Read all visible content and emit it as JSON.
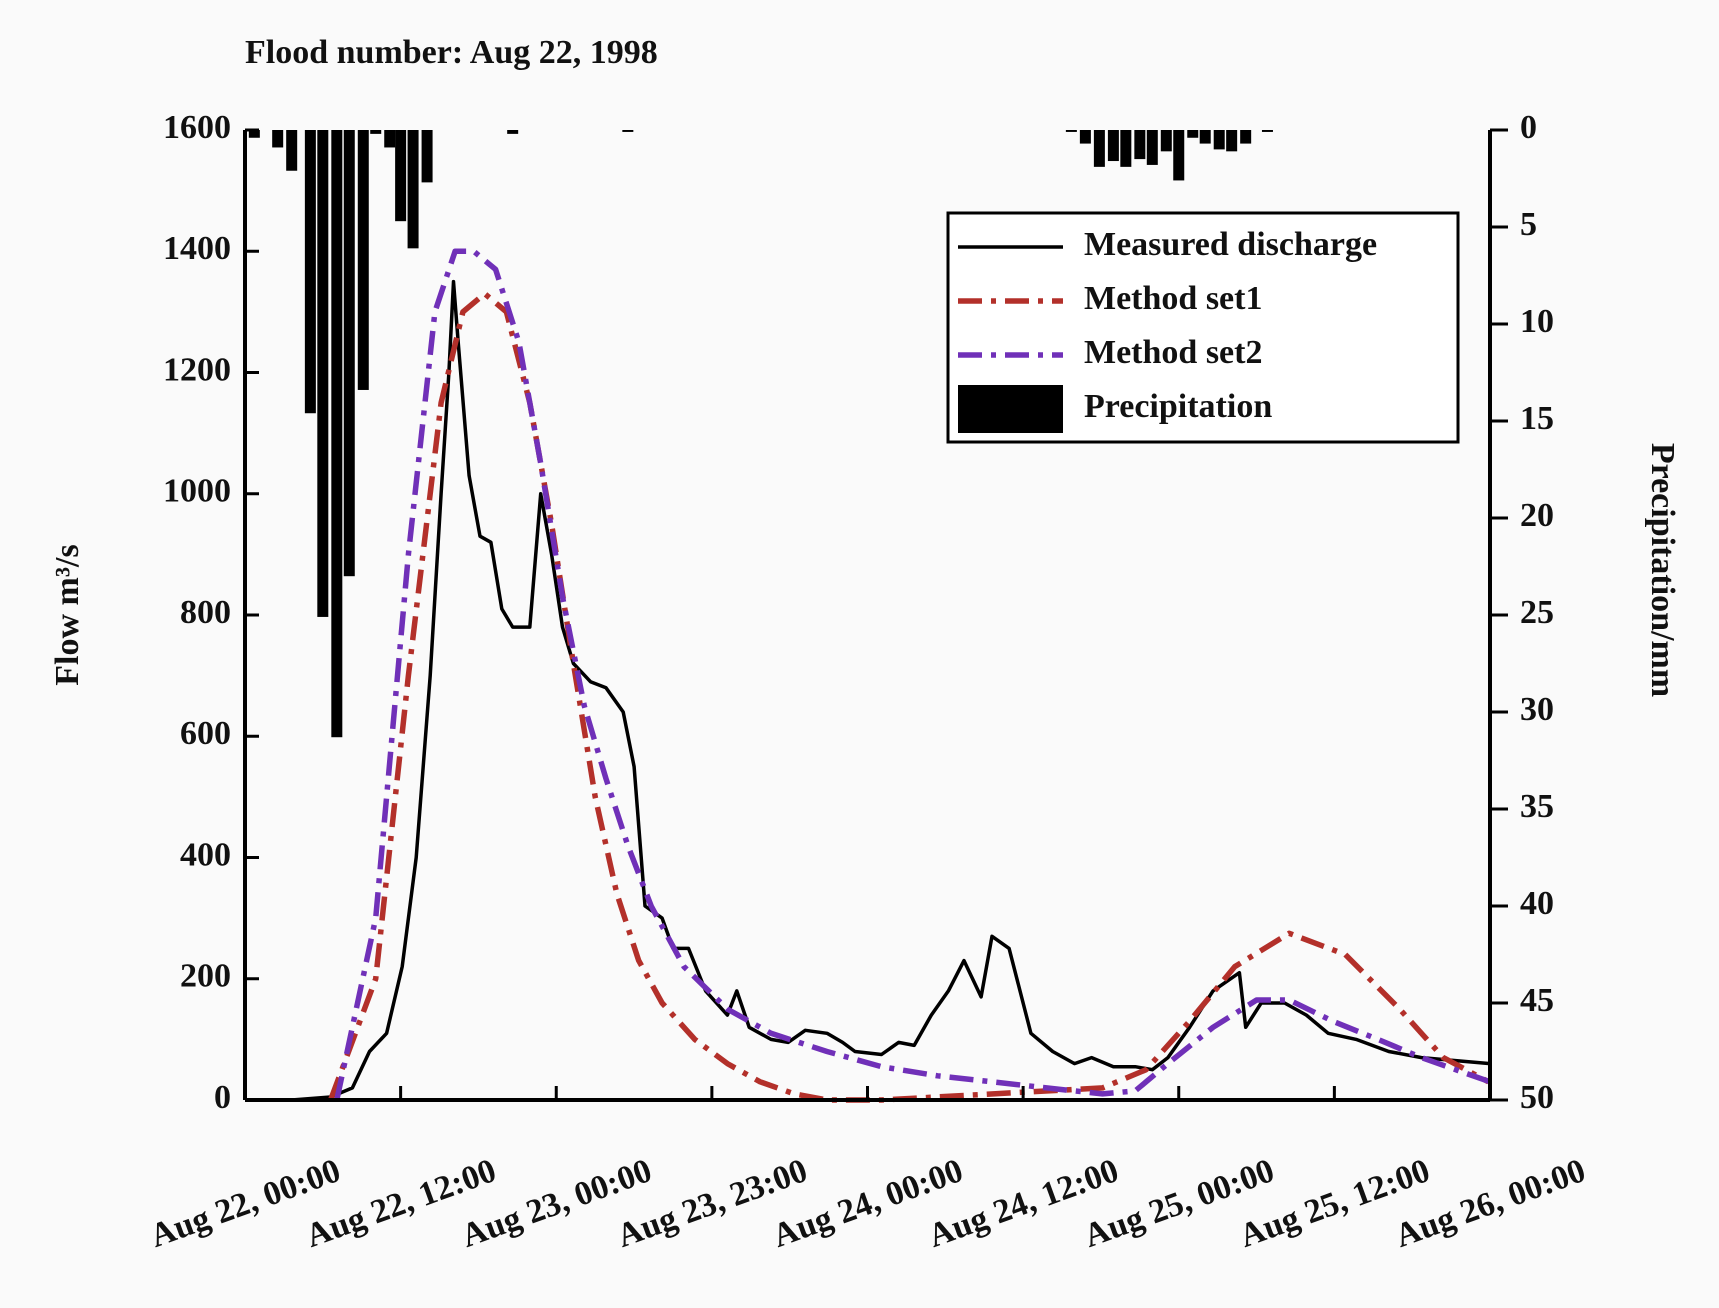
{
  "chart_data": {
    "type": "line",
    "title": "Flood number: Aug 22, 1998",
    "y_label": "Flow m³/s",
    "y2_label": "Precipitation/mm",
    "xlim": [
      0,
      8
    ],
    "xticks": [
      {
        "value": 0,
        "label": "Aug 22, 00:00"
      },
      {
        "value": 1,
        "label": "Aug 22, 12:00"
      },
      {
        "value": 2,
        "label": "Aug 23, 00:00"
      },
      {
        "value": 3,
        "label": "Aug 23, 23:00"
      },
      {
        "value": 4,
        "label": "Aug 24, 00:00"
      },
      {
        "value": 5,
        "label": "Aug 24, 12:00"
      },
      {
        "value": 6,
        "label": "Aug 25, 00:00"
      },
      {
        "value": 7,
        "label": "Aug 25, 12:00"
      },
      {
        "value": 8,
        "label": "Aug 26, 00:00"
      }
    ],
    "ylim": [
      0,
      1600
    ],
    "yticks": [
      0,
      200,
      400,
      600,
      800,
      1000,
      1200,
      1400,
      1600
    ],
    "y2lim": [
      50,
      0
    ],
    "y2ticks": [
      0,
      5,
      10,
      15,
      20,
      25,
      30,
      35,
      40,
      45,
      50
    ],
    "legend": "upper right",
    "series": [
      {
        "name": "Measured discharge",
        "type": "line",
        "color": "#000000",
        "x": [
          0.3,
          0.55,
          0.69,
          0.8,
          0.91,
          1.01,
          1.1,
          1.19,
          1.26,
          1.31,
          1.34,
          1.37,
          1.44,
          1.51,
          1.58,
          1.65,
          1.72,
          1.83,
          1.9,
          1.97,
          2.04,
          2.11,
          2.22,
          2.32,
          2.43,
          2.5,
          2.57,
          2.68,
          2.75,
          2.85,
          2.96,
          3.1,
          3.16,
          3.24,
          3.38,
          3.49,
          3.6,
          3.74,
          3.84,
          3.92,
          4.09,
          4.2,
          4.3,
          4.41,
          4.52,
          4.62,
          4.73,
          4.8,
          4.91,
          5.05,
          5.19,
          5.33,
          5.44,
          5.58,
          5.72,
          5.83,
          5.93,
          6.07,
          6.22,
          6.39,
          6.43,
          6.53,
          6.68,
          6.82,
          6.96,
          7.14,
          7.35,
          7.56,
          8.0
        ],
        "values": [
          0,
          5,
          20,
          80,
          110,
          220,
          400,
          700,
          1000,
          1200,
          1350,
          1250,
          1030,
          930,
          920,
          810,
          780,
          780,
          1000,
          900,
          780,
          720,
          690,
          680,
          640,
          550,
          320,
          300,
          250,
          250,
          180,
          140,
          180,
          120,
          100,
          95,
          115,
          110,
          95,
          80,
          75,
          95,
          90,
          140,
          180,
          230,
          170,
          270,
          250,
          110,
          80,
          60,
          70,
          55,
          55,
          50,
          70,
          120,
          180,
          210,
          120,
          160,
          160,
          140,
          110,
          100,
          80,
          70,
          60
        ]
      },
      {
        "name": "Method set1",
        "type": "line",
        "color": "#b3302a",
        "x": [
          0.55,
          0.84,
          1.05,
          1.26,
          1.4,
          1.54,
          1.68,
          1.83,
          1.97,
          2.11,
          2.25,
          2.39,
          2.53,
          2.68,
          2.89,
          3.1,
          3.31,
          3.53,
          3.74,
          4.09,
          5.51,
          5.79,
          6.07,
          6.36,
          6.71,
          7.07,
          7.42,
          7.7,
          7.99
        ],
        "values": [
          0,
          200,
          700,
          1150,
          1300,
          1330,
          1300,
          1150,
          950,
          720,
          500,
          340,
          230,
          160,
          100,
          60,
          30,
          10,
          0,
          0,
          20,
          50,
          130,
          220,
          275,
          240,
          150,
          70,
          30
        ]
      },
      {
        "name": "Method set2",
        "type": "line",
        "color": "#7030b8",
        "x": [
          0.59,
          0.84,
          1.05,
          1.22,
          1.35,
          1.47,
          1.61,
          1.76,
          1.9,
          2.04,
          2.18,
          2.32,
          2.46,
          2.61,
          2.82,
          3.1,
          3.38,
          3.74,
          4.09,
          4.45,
          4.8,
          5.15,
          5.51,
          5.72,
          5.93,
          6.22,
          6.5,
          6.71,
          6.99,
          7.28,
          7.56,
          8.0
        ],
        "values": [
          0,
          300,
          900,
          1300,
          1400,
          1400,
          1370,
          1250,
          1050,
          830,
          650,
          530,
          420,
          320,
          220,
          150,
          110,
          80,
          55,
          40,
          30,
          20,
          10,
          15,
          60,
          120,
          165,
          165,
          130,
          100,
          70,
          30
        ]
      },
      {
        "name": "Precipitation",
        "type": "bar",
        "axis": "y2",
        "color": "#000000",
        "x": [
          0.06,
          0.21,
          0.3,
          0.42,
          0.5,
          0.59,
          0.67,
          0.76,
          0.84,
          0.93,
          1.0,
          1.08,
          1.17,
          1.72,
          2.46,
          5.31,
          5.4,
          5.49,
          5.58,
          5.66,
          5.75,
          5.83,
          5.92,
          6.0,
          6.09,
          6.17,
          6.26,
          6.34,
          6.43,
          6.57
        ],
        "values": [
          0.4,
          0.9,
          2.1,
          14.6,
          25.1,
          31.3,
          23,
          13.4,
          0.2,
          0.9,
          4.7,
          6.1,
          2.7,
          0.2,
          0.1,
          0.1,
          0.7,
          1.9,
          1.6,
          1.9,
          1.5,
          1.8,
          1.1,
          2.6,
          0.4,
          0.7,
          1.0,
          1.1,
          0.7,
          0.1
        ]
      }
    ]
  }
}
